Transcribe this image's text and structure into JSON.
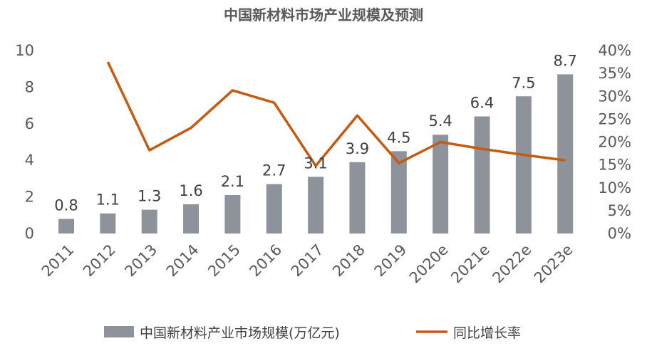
{
  "chart_data": {
    "type": "bar+line",
    "title": "中国新材料市场产业规模及预测",
    "categories": [
      "2011",
      "2012",
      "2013",
      "2014",
      "2015",
      "2016",
      "2017",
      "2018",
      "2019",
      "2020e",
      "2021e",
      "2022e",
      "2023e"
    ],
    "series": [
      {
        "name": "中国新材料产业市场规模(万亿元)",
        "type": "bar",
        "axis": "left",
        "color": "#8e939b",
        "values": [
          0.8,
          1.1,
          1.3,
          1.6,
          2.1,
          2.7,
          3.1,
          3.9,
          4.5,
          5.4,
          6.4,
          7.5,
          8.7
        ],
        "labels": [
          "0.8",
          "1.1",
          "1.3",
          "1.6",
          "2.1",
          "2.7",
          "3.1",
          "3.9",
          "4.5",
          "5.4",
          "6.4",
          "7.5",
          "8.7"
        ]
      },
      {
        "name": "同比增长率",
        "type": "line",
        "axis": "right",
        "color": "#c55a11",
        "values": [
          null,
          37.5,
          18.2,
          23.1,
          31.3,
          28.6,
          14.8,
          25.8,
          15.4,
          20.0,
          18.5,
          17.2,
          16.0
        ]
      }
    ],
    "left_axis": {
      "ylim": [
        0,
        10
      ],
      "ticks": [
        "0",
        "2",
        "4",
        "6",
        "8",
        "10"
      ]
    },
    "right_axis": {
      "ylim": [
        0,
        40
      ],
      "ticks": [
        "0%",
        "5%",
        "10%",
        "15%",
        "20%",
        "25%",
        "30%",
        "35%",
        "40%"
      ]
    },
    "grid": false,
    "legend_position": "bottom"
  }
}
